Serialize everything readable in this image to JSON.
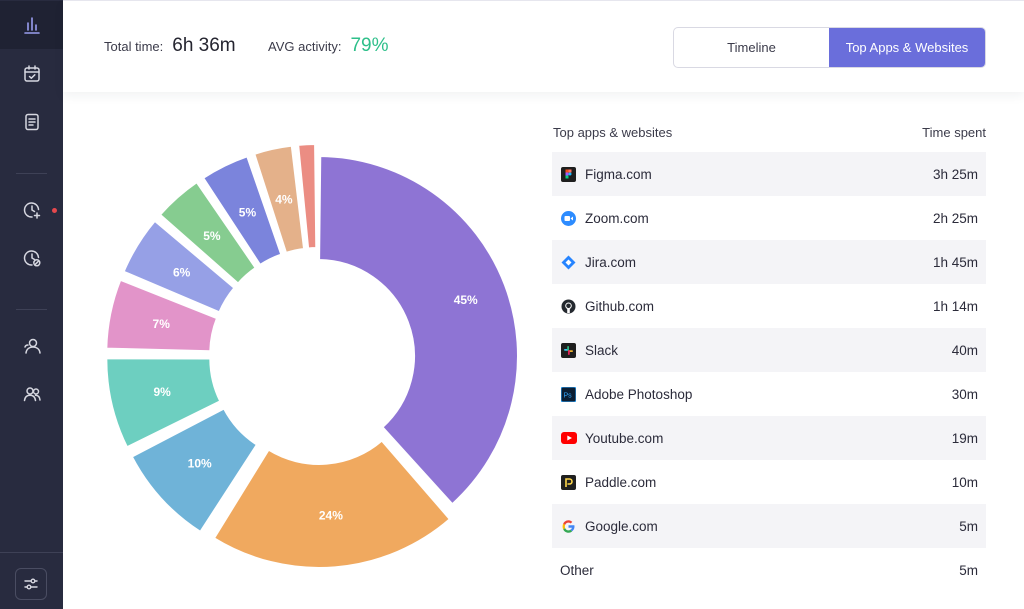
{
  "summary": {
    "total_label": "Total time:",
    "total_value": "6h 36m",
    "avg_label": "AVG activity:",
    "avg_value": "79%",
    "avg_color": "#2ebf8a"
  },
  "tabs": [
    {
      "label": "Timeline",
      "active": false
    },
    {
      "label": "Top Apps & Websites",
      "active": true
    }
  ],
  "sidebar": {
    "items": [
      "analytics-icon",
      "calendar-check-icon",
      "document-icon",
      "clock-add-icon",
      "clock-off-icon",
      "user-icon",
      "users-icon"
    ],
    "settings": "sliders-icon"
  },
  "table": {
    "col_name": "Top apps & websites",
    "col_time": "Time spent",
    "rows": [
      {
        "name": "Figma.com",
        "time": "3h 25m",
        "icon": "figma-icon"
      },
      {
        "name": "Zoom.com",
        "time": "2h 25m",
        "icon": "zoom-icon"
      },
      {
        "name": "Jira.com",
        "time": "1h 45m",
        "icon": "jira-icon"
      },
      {
        "name": "Github.com",
        "time": "1h 14m",
        "icon": "github-icon"
      },
      {
        "name": "Slack",
        "time": "40m",
        "icon": "slack-icon"
      },
      {
        "name": "Adobe Photoshop",
        "time": "30m",
        "icon": "photoshop-icon"
      },
      {
        "name": "Youtube.com",
        "time": "19m",
        "icon": "youtube-icon"
      },
      {
        "name": "Paddle.com",
        "time": "10m",
        "icon": "paddle-icon"
      },
      {
        "name": "Google.com",
        "time": "5m",
        "icon": "google-icon"
      },
      {
        "name": "Other",
        "time": "5m",
        "icon": ""
      }
    ]
  },
  "chart_data": {
    "type": "pie",
    "donut": true,
    "slices": [
      {
        "label": "45%",
        "value": 45,
        "color": "#8e74d4"
      },
      {
        "label": "24%",
        "value": 24,
        "color": "#f0a95f"
      },
      {
        "label": "10%",
        "value": 10,
        "color": "#6fb3d8"
      },
      {
        "label": "9%",
        "value": 9,
        "color": "#6dcfc0"
      },
      {
        "label": "7%",
        "value": 7,
        "color": "#e294c9"
      },
      {
        "label": "6%",
        "value": 6,
        "color": "#96a0e6"
      },
      {
        "label": "5%",
        "value": 5,
        "color": "#86cc90"
      },
      {
        "label": "5%",
        "value": 5,
        "color": "#7b84dc"
      },
      {
        "label": "4%",
        "value": 4,
        "color": "#e4b18a"
      },
      {
        "label": "",
        "value": 2,
        "color": "#eb8d83"
      }
    ]
  }
}
